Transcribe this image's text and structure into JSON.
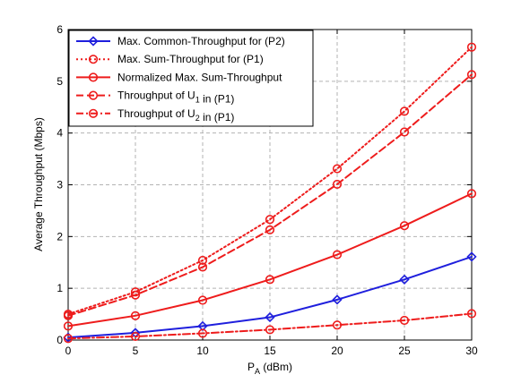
{
  "chart_data": {
    "type": "line",
    "xlabel_main": "P",
    "xlabel_sub": "A",
    "xlabel_unit": " (dBm)",
    "ylabel": "Average Throughput (Mbps)",
    "xlim": [
      0,
      30
    ],
    "ylim": [
      0,
      6
    ],
    "x_ticks": [
      0,
      5,
      10,
      15,
      20,
      25,
      30
    ],
    "y_ticks": [
      0,
      1,
      2,
      3,
      4,
      5,
      6
    ],
    "grid": true,
    "legend_position": "top-left",
    "x": [
      0,
      5,
      10,
      15,
      20,
      25,
      30
    ],
    "series": [
      {
        "name": "Max. Common-Throughput for (P2)",
        "legend_parts": [
          {
            "t": "Max. Common-Throughput for (P2)",
            "sub": false
          }
        ],
        "values": [
          0.05,
          0.14,
          0.27,
          0.44,
          0.78,
          1.17,
          1.61
        ],
        "color": "#1f1fdd",
        "dash": "solid",
        "marker": "diamond"
      },
      {
        "name": "Max. Sum-Throughput for (P1)",
        "legend_parts": [
          {
            "t": "Max. Sum-Throughput for (P1)",
            "sub": false
          }
        ],
        "values": [
          0.5,
          0.93,
          1.54,
          2.33,
          3.31,
          4.42,
          5.66
        ],
        "color": "#ee1c1c",
        "dash": "dotted",
        "marker": "circle"
      },
      {
        "name": "Normalized Max. Sum-Throughput",
        "legend_parts": [
          {
            "t": "Normalized Max. Sum-Throughput",
            "sub": false
          }
        ],
        "values": [
          0.27,
          0.47,
          0.77,
          1.17,
          1.65,
          2.21,
          2.83
        ],
        "color": "#ee1c1c",
        "dash": "solid",
        "marker": "circle"
      },
      {
        "name": "Throughput of U1 in (P1)",
        "legend_parts": [
          {
            "t": "Throughput of U",
            "sub": false
          },
          {
            "t": "1",
            "sub": true
          },
          {
            "t": " in (P1)",
            "sub": false
          }
        ],
        "values": [
          0.47,
          0.87,
          1.41,
          2.13,
          3.01,
          4.02,
          5.13
        ],
        "color": "#ee1c1c",
        "dash": "dashed",
        "marker": "circle"
      },
      {
        "name": "Throughput of U2 in (P1)",
        "legend_parts": [
          {
            "t": "Throughput of U",
            "sub": false
          },
          {
            "t": "2",
            "sub": true
          },
          {
            "t": " in (P1)",
            "sub": false
          }
        ],
        "values": [
          0.03,
          0.07,
          0.13,
          0.2,
          0.29,
          0.38,
          0.51
        ],
        "color": "#ee1c1c",
        "dash": "dashdot",
        "marker": "circle"
      }
    ]
  }
}
